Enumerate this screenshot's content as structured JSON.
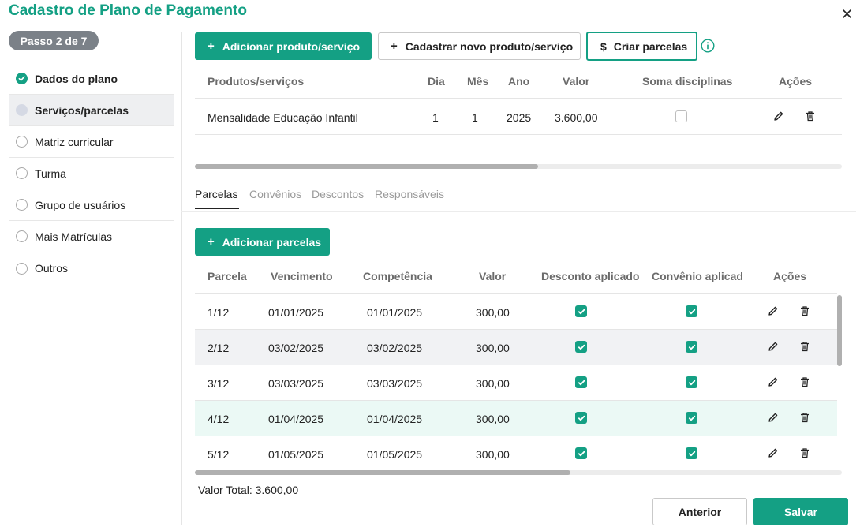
{
  "dialog": {
    "title": "Cadastro de Plano de Pagamento",
    "step_label": "Passo 2 de 7"
  },
  "sidebar": {
    "items": [
      {
        "label": "Dados do plano",
        "state": "done"
      },
      {
        "label": "Serviços/parcelas",
        "state": "current"
      },
      {
        "label": "Matriz curricular",
        "state": "todo"
      },
      {
        "label": "Turma",
        "state": "todo"
      },
      {
        "label": "Grupo de usuários",
        "state": "todo"
      },
      {
        "label": "Mais Matrículas",
        "state": "todo"
      },
      {
        "label": "Outros",
        "state": "todo"
      }
    ]
  },
  "toolbar": {
    "add_product_label": "Adicionar produto/serviço",
    "new_product_label": "Cadastrar novo produto/serviço",
    "create_installments_label": "Criar parcelas",
    "dollar_symbol": "$",
    "plus_symbol": "+"
  },
  "products_table": {
    "headers": {
      "product": "Produtos/serviços",
      "day": "Dia",
      "month": "Mês",
      "year": "Ano",
      "value": "Valor",
      "sum_disciplines": "Soma disciplinas",
      "actions": "Ações"
    },
    "rows": [
      {
        "product": "Mensalidade Educação Infantil",
        "day": "1",
        "month": "1",
        "year": "2025",
        "value": "3.600,00",
        "sum_disciplines": false
      }
    ],
    "scroll_fraction": 0.53
  },
  "tabs": [
    {
      "label": "Parcelas",
      "active": true
    },
    {
      "label": "Convênios",
      "active": false
    },
    {
      "label": "Descontos",
      "active": false
    },
    {
      "label": "Responsáveis",
      "active": false
    }
  ],
  "installments": {
    "add_label": "Adicionar parcelas",
    "headers": {
      "parcel": "Parcela",
      "due": "Vencimento",
      "competence": "Competência",
      "value": "Valor",
      "discount": "Desconto aplicado",
      "agreement": "Convênio aplicado",
      "actions": "Ações"
    },
    "rows": [
      {
        "parcel": "1/12",
        "due": "01/01/2025",
        "competence": "01/01/2025",
        "value": "300,00",
        "discount": true,
        "agreement": true
      },
      {
        "parcel": "2/12",
        "due": "03/02/2025",
        "competence": "03/02/2025",
        "value": "300,00",
        "discount": true,
        "agreement": true
      },
      {
        "parcel": "3/12",
        "due": "03/03/2025",
        "competence": "03/03/2025",
        "value": "300,00",
        "discount": true,
        "agreement": true
      },
      {
        "parcel": "4/12",
        "due": "01/04/2025",
        "competence": "01/04/2025",
        "value": "300,00",
        "discount": true,
        "agreement": true
      },
      {
        "parcel": "5/12",
        "due": "01/05/2025",
        "competence": "01/05/2025",
        "value": "300,00",
        "discount": true,
        "agreement": true
      }
    ],
    "total_label": "Valor Total: 3.600,00",
    "hscroll_fraction": 0.58
  },
  "footer": {
    "previous_label": "Anterior",
    "save_label": "Salvar"
  },
  "colors": {
    "accent": "#14a084",
    "step_badge": "#7b8188"
  }
}
